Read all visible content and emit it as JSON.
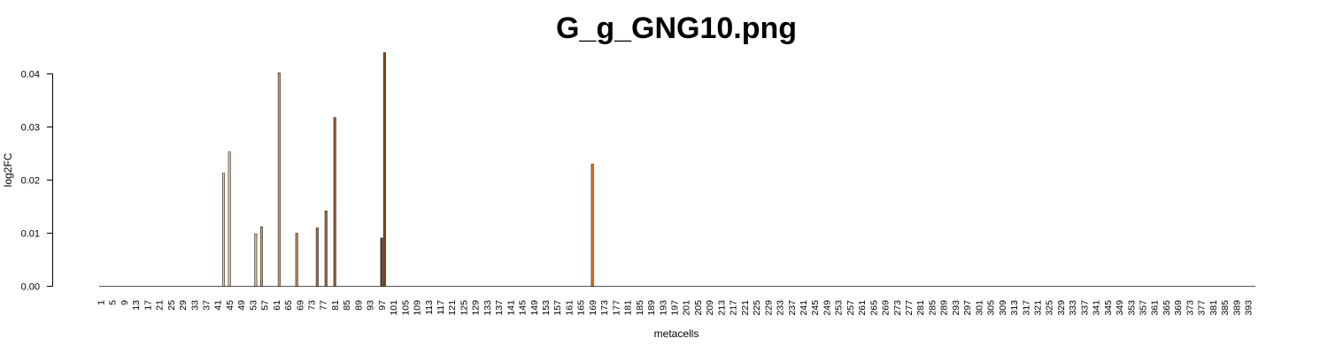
{
  "chart_data": {
    "type": "bar",
    "title": "G_g_GNG10.png",
    "xlabel": "metacells",
    "ylabel": "log2FC",
    "ylim": [
      0,
      0.044
    ],
    "y_ticks": [
      "0.00",
      "0.01",
      "0.02",
      "0.03",
      "0.04"
    ],
    "y_tick_values": [
      0,
      0.01,
      0.02,
      0.03,
      0.04
    ],
    "n_categories": 395,
    "x_tick_labels": [
      "1",
      "5",
      "9",
      "13",
      "17",
      "21",
      "25",
      "29",
      "33",
      "37",
      "41",
      "45",
      "49",
      "53",
      "57",
      "61",
      "65",
      "69",
      "73",
      "77",
      "81",
      "85",
      "89",
      "93",
      "97",
      "101",
      "105",
      "109",
      "113",
      "117",
      "121",
      "125",
      "129",
      "133",
      "137",
      "141",
      "145",
      "149",
      "153",
      "157",
      "161",
      "165",
      "169",
      "173",
      "177",
      "181",
      "185",
      "189",
      "193",
      "197",
      "201",
      "205",
      "209",
      "213",
      "217",
      "221",
      "225",
      "229",
      "233",
      "237",
      "241",
      "245",
      "249",
      "253",
      "257",
      "261",
      "265",
      "269",
      "273",
      "277",
      "281",
      "285",
      "289",
      "293",
      "297",
      "301",
      "305",
      "309",
      "313",
      "317",
      "321",
      "325",
      "329",
      "333",
      "337",
      "341",
      "345",
      "349",
      "353",
      "357",
      "361",
      "365",
      "369",
      "373",
      "377",
      "381",
      "385",
      "389",
      "393"
    ],
    "bars": [
      {
        "metacell": 43,
        "value": 0.0213,
        "color": "#e6cfa8"
      },
      {
        "metacell": 45,
        "value": 0.0253,
        "color": "#dcc094"
      },
      {
        "metacell": 54,
        "value": 0.0099,
        "color": "#d9b98a"
      },
      {
        "metacell": 56,
        "value": 0.0112,
        "color": "#d2ad78"
      },
      {
        "metacell": 62,
        "value": 0.0402,
        "color": "#c9a06b"
      },
      {
        "metacell": 68,
        "value": 0.01,
        "color": "#b8895a"
      },
      {
        "metacell": 75,
        "value": 0.011,
        "color": "#a86f43"
      },
      {
        "metacell": 78,
        "value": 0.0142,
        "color": "#9c6a3c"
      },
      {
        "metacell": 81,
        "value": 0.0318,
        "color": "#a05a30"
      },
      {
        "metacell": 97,
        "value": 0.0091,
        "color": "#6b3a1e"
      },
      {
        "metacell": 98,
        "value": 0.044,
        "color": "#8b4a22"
      },
      {
        "metacell": 169,
        "value": 0.023,
        "color": "#f0641e"
      }
    ]
  }
}
